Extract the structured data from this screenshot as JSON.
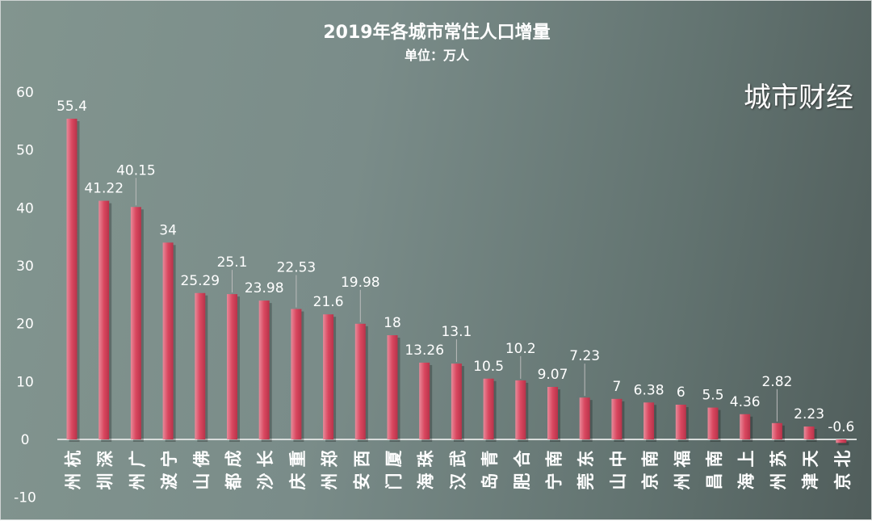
{
  "chart_data": {
    "type": "bar",
    "title": "2019年各城市常住人口增量",
    "subtitle": "单位：万人",
    "categories": [
      "杭州",
      "深圳",
      "广州",
      "宁波",
      "佛山",
      "成都",
      "长沙",
      "重庆",
      "郑州",
      "西安",
      "厦门",
      "珠海",
      "武汉",
      "青岛",
      "合肥",
      "南宁",
      "东莞",
      "中山",
      "南京",
      "福州",
      "南昌",
      "上海",
      "苏州",
      "天津",
      "北京"
    ],
    "values": [
      55.4,
      41.22,
      40.15,
      34,
      25.29,
      25.1,
      23.98,
      22.53,
      21.6,
      19.98,
      18,
      13.26,
      13.1,
      10.5,
      10.2,
      9.07,
      7.23,
      7,
      6.38,
      6,
      5.5,
      4.36,
      2.82,
      2.23,
      -0.6
    ],
    "labels": [
      "55.4",
      "41.22",
      "40.15",
      "34",
      "25.29",
      "25.1",
      "23.98",
      "22.53",
      "21.6",
      "19.98",
      "18",
      "13.26",
      "13.1",
      "10.5",
      "10.2",
      "9.07",
      "7.23",
      "7",
      "6.38",
      "6",
      "5.5",
      "4.36",
      "2.82",
      "2.23",
      "-0.6"
    ],
    "yticks": [
      "-10",
      "0",
      "10",
      "20",
      "30",
      "40",
      "50",
      "60"
    ],
    "ylim": [
      -10,
      60
    ],
    "grid": false,
    "bar_color": "#d9475f"
  },
  "watermark": "城市财经"
}
